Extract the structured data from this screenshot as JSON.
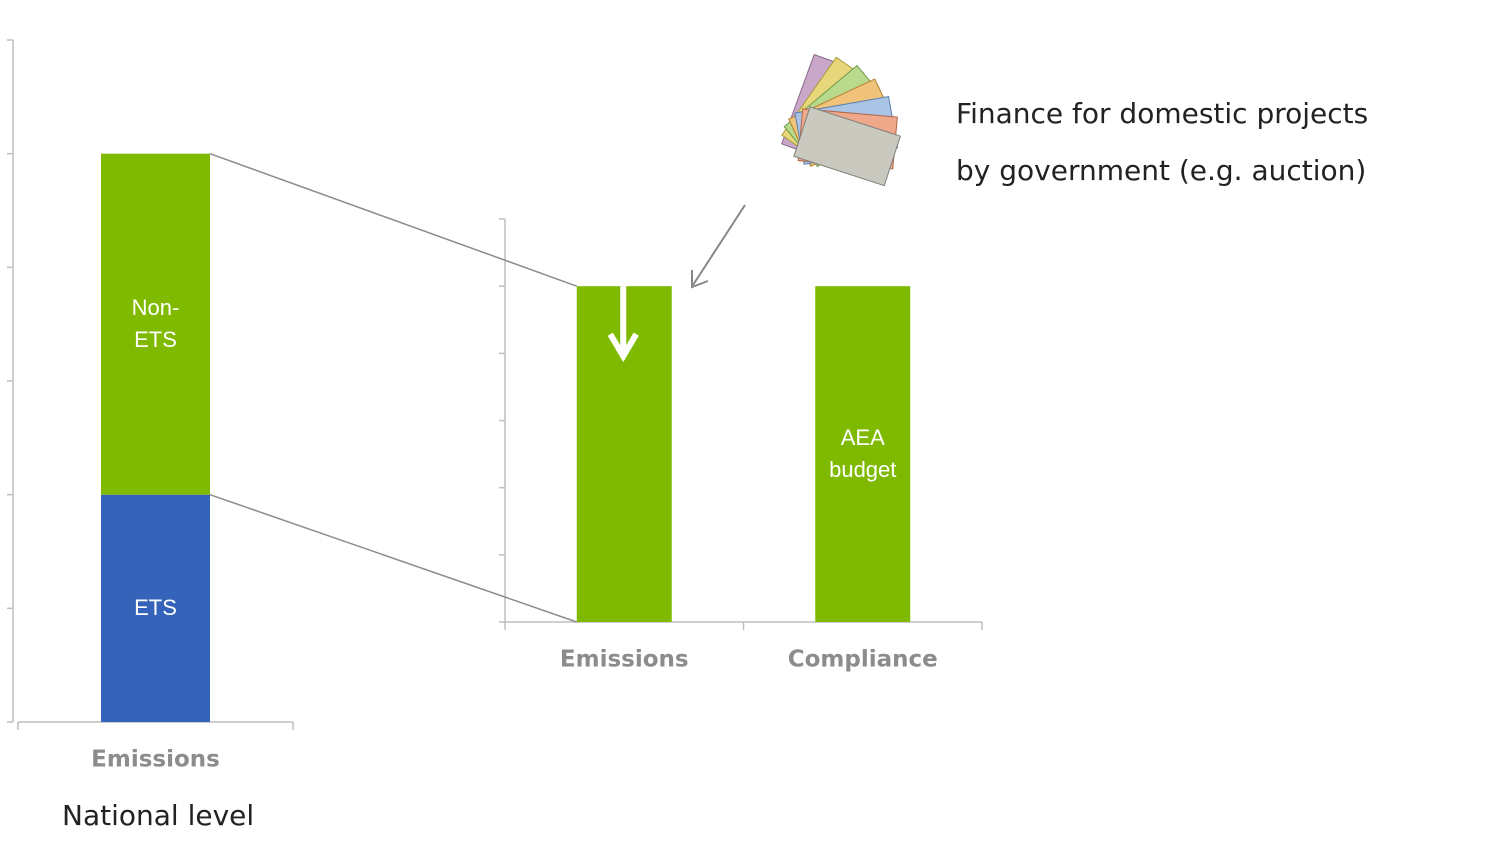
{
  "chart_data": [
    {
      "type": "stacked-bar",
      "categories": [
        "Emissions"
      ],
      "series": [
        {
          "name": "ETS",
          "color": "#3563b9",
          "values": [
            2
          ]
        },
        {
          "name": "Non-ETS",
          "color": "#7fba00",
          "values": [
            3
          ]
        }
      ],
      "ylim": [
        0,
        6
      ],
      "yticks": [
        0,
        1,
        2,
        3,
        4,
        5,
        6
      ],
      "caption": "National level"
    },
    {
      "type": "bar",
      "categories": [
        "Emissions",
        "Compliance"
      ],
      "values": [
        5,
        5
      ],
      "color": "#7fba00",
      "bar_labels": [
        null,
        "AEA budget"
      ],
      "ylim": [
        0,
        6
      ],
      "yticks": [
        0,
        1,
        2,
        3,
        4,
        5,
        6
      ],
      "annotation": [
        "Finance for domestic projects",
        "by government (e.g. auction)"
      ]
    }
  ]
}
